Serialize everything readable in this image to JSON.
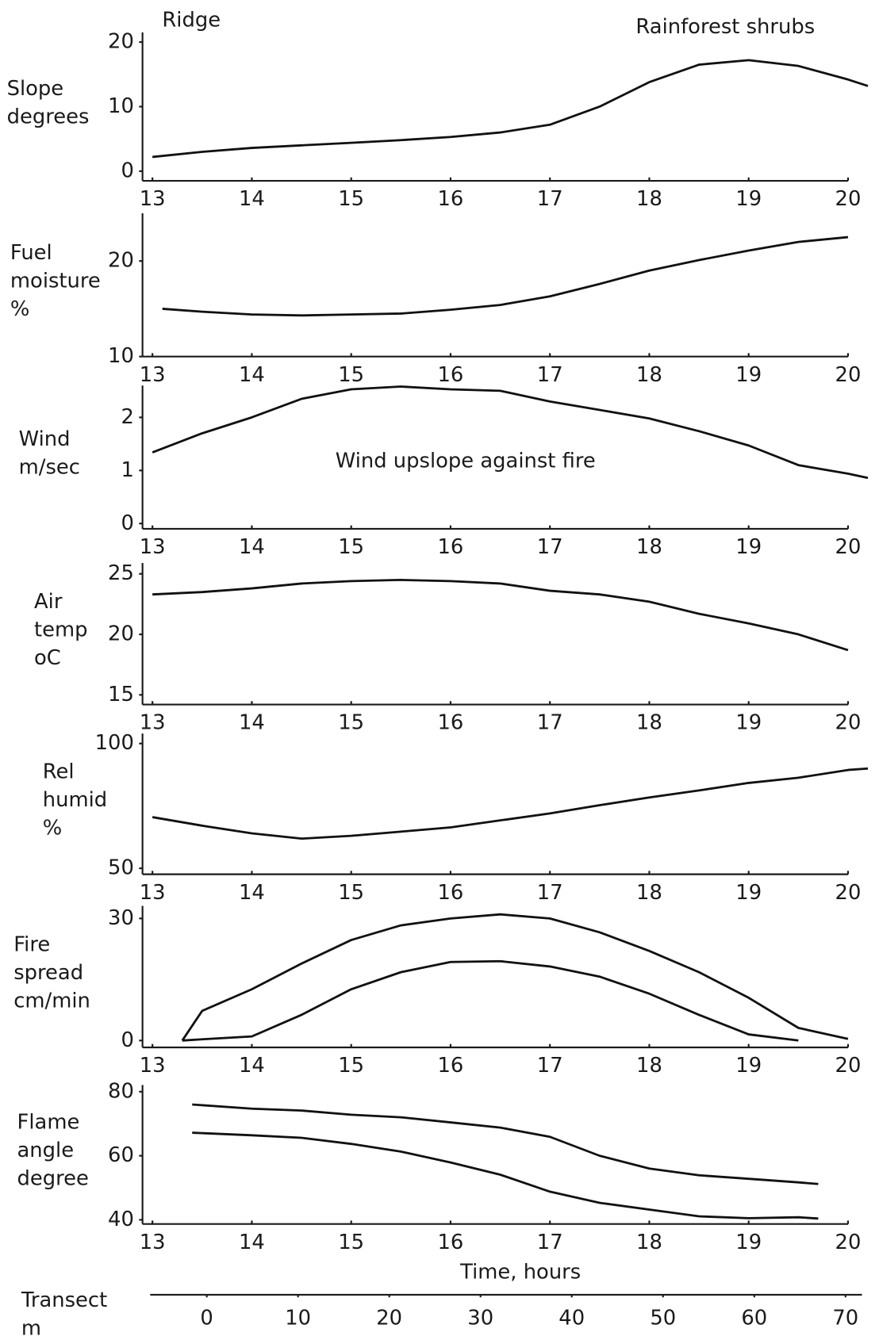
{
  "chart_data": [
    {
      "type": "line",
      "ylabel": [
        "Slope",
        "degrees"
      ],
      "annotations": [
        "Ridge",
        "Rainforest shrubs"
      ],
      "x": [
        13,
        13.5,
        14,
        14.5,
        15,
        15.5,
        16,
        16.5,
        17,
        17.5,
        18,
        18.5,
        19,
        19.5,
        20,
        20.2
      ],
      "values": [
        2.2,
        3,
        3.6,
        4,
        4.4,
        4.8,
        5.3,
        6,
        7.2,
        10,
        13.8,
        16.5,
        17.2,
        16.3,
        14.2,
        13.2
      ],
      "color": "#111111",
      "xlim": [
        12.9,
        20.2
      ],
      "xticks": [
        13,
        14,
        15,
        16,
        17,
        18,
        19,
        20
      ],
      "ylim": [
        -1.5,
        21.5
      ],
      "yticks": [
        0,
        10,
        20
      ]
    },
    {
      "type": "line",
      "ylabel": [
        "Fuel",
        "moisture",
        "%"
      ],
      "x": [
        13.1,
        13.5,
        14,
        14.5,
        15,
        15.5,
        16,
        16.5,
        17,
        17.5,
        18,
        18.5,
        19,
        19.5,
        20
      ],
      "values": [
        15,
        14.7,
        14.4,
        14.3,
        14.4,
        14.5,
        14.9,
        15.4,
        16.3,
        17.6,
        19,
        20.1,
        21.1,
        22,
        22.5
      ],
      "color": "#111111",
      "xlim": [
        12.9,
        20.2
      ],
      "xticks": [
        13,
        14,
        15,
        16,
        17,
        18,
        19,
        20
      ],
      "ylim": [
        10,
        25
      ],
      "yticks": [
        10,
        20
      ]
    },
    {
      "type": "line",
      "ylabel": [
        "Wind",
        "m/sec"
      ],
      "annotations": [
        "Wind upslope against fire"
      ],
      "x": [
        13,
        13.5,
        14,
        14.5,
        15,
        15.5,
        16,
        16.5,
        17,
        17.5,
        18,
        18.5,
        19,
        19.5,
        20,
        20.2
      ],
      "values": [
        1.34,
        1.7,
        2.0,
        2.35,
        2.53,
        2.58,
        2.53,
        2.5,
        2.3,
        2.14,
        1.98,
        1.74,
        1.47,
        1.1,
        0.94,
        0.86
      ],
      "color": "#111111",
      "xlim": [
        12.9,
        20.2
      ],
      "xticks": [
        13,
        14,
        15,
        16,
        17,
        18,
        19,
        20
      ],
      "ylim": [
        -0.1,
        2.6
      ],
      "yticks": [
        0,
        1,
        2
      ]
    },
    {
      "type": "line",
      "ylabel": [
        "Air",
        "temp",
        "oC"
      ],
      "x": [
        13,
        13.5,
        14,
        14.5,
        15,
        15.5,
        16,
        16.5,
        17,
        17.5,
        18,
        18.5,
        19,
        19.5,
        20
      ],
      "values": [
        23.3,
        23.5,
        23.8,
        24.2,
        24.4,
        24.5,
        24.4,
        24.2,
        23.6,
        23.3,
        22.7,
        21.7,
        20.9,
        20,
        18.7
      ],
      "color": "#111111",
      "xlim": [
        12.9,
        20.2
      ],
      "xticks": [
        13,
        14,
        15,
        16,
        17,
        18,
        19,
        20
      ],
      "ylim": [
        14.2,
        25.9
      ],
      "yticks": [
        15,
        20,
        25
      ]
    },
    {
      "type": "line",
      "ylabel": [
        "Rel",
        "humid",
        "%"
      ],
      "x": [
        13,
        13.5,
        14,
        14.5,
        15,
        15.5,
        16,
        16.5,
        17,
        17.5,
        18,
        18.5,
        19,
        19.5,
        20,
        20.2
      ],
      "values": [
        70.5,
        67.1,
        64,
        61.9,
        63,
        64.7,
        66.4,
        69.2,
        72,
        75.3,
        78.4,
        81.2,
        84.2,
        86.3,
        89.4,
        90
      ],
      "color": "#111111",
      "xlim": [
        12.9,
        20.2
      ],
      "xticks": [
        13,
        14,
        15,
        16,
        17,
        18,
        19,
        20
      ],
      "ylim": [
        47.6,
        104
      ],
      "yticks": [
        50,
        100
      ]
    },
    {
      "type": "line",
      "ylabel": [
        "Fire",
        "spread",
        "cm/min"
      ],
      "x": [
        13.3,
        13.5,
        14,
        14.5,
        15,
        15.5,
        16,
        16.5,
        17,
        17.5,
        18,
        18.5,
        19,
        19.5,
        20
      ],
      "series": [
        {
          "color": "#111111",
          "values": [
            0,
            7.3,
            12.6,
            18.9,
            24.7,
            28.3,
            30,
            31,
            30,
            26.6,
            22,
            16.8,
            10.5,
            3.1,
            0.4
          ]
        },
        {
          "color": "#111111",
          "values": [
            0,
            0.3,
            1,
            6.3,
            12.6,
            16.8,
            19.3,
            19.5,
            18.2,
            15.7,
            11.5,
            6.3,
            1.5,
            0,
            null
          ]
        }
      ],
      "xlim": [
        12.9,
        20.2
      ],
      "xticks": [
        13,
        14,
        15,
        16,
        17,
        18,
        19,
        20
      ],
      "ylim": [
        -1.7,
        33.1
      ],
      "yticks": [
        0,
        30
      ]
    },
    {
      "type": "line",
      "ylabel": [
        "Flame",
        "angle",
        "degree"
      ],
      "xlabel": "Time, hours",
      "x": [
        13.4,
        14,
        14.5,
        15,
        15.5,
        16,
        16.5,
        17,
        17.5,
        18,
        18.5,
        19,
        19.5,
        19.7
      ],
      "series": [
        {
          "color": "#111111",
          "values": [
            76,
            74.7,
            74.1,
            72.8,
            72,
            70.4,
            68.8,
            65.9,
            60,
            56,
            53.9,
            52.8,
            51.7,
            51.2
          ]
        },
        {
          "color": "#111111",
          "values": [
            67.2,
            66.4,
            65.6,
            63.7,
            61.3,
            57.9,
            54.1,
            48.8,
            45.3,
            43.2,
            41.1,
            40.5,
            40.8,
            40.4
          ]
        }
      ],
      "xlim": [
        12.9,
        20.2
      ],
      "xticks": [
        13,
        14,
        15,
        16,
        17,
        18,
        19,
        20
      ],
      "ylim": [
        38.7,
        82.1
      ],
      "yticks": [
        40,
        60,
        80
      ]
    }
  ],
  "transect_axis": {
    "label": [
      "Transect",
      "m"
    ],
    "xlim": [
      -6.2,
      71.8
    ],
    "xticks": [
      0,
      10,
      20,
      30,
      40,
      50,
      60,
      70
    ]
  }
}
